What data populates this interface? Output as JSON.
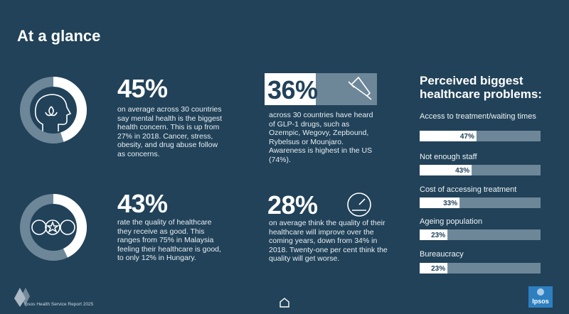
{
  "header": {
    "title": "At a glance"
  },
  "stats": [
    {
      "label": "45%",
      "value": 45,
      "text": "on average across 30 countries say mental health is the biggest health concern. This is up from 27% in 2018. Cancer, stress, obesity, and drug abuse follow as concerns."
    },
    {
      "label": "36%",
      "text": "across 30 countries have heard of GLP-1 drugs, such as Ozempic, Wegovy, Zepbound, Rybelsus or Mounjaro. Awareness is highest in the US (74%)."
    },
    {
      "label": "43%",
      "value": 43,
      "text": "rate the quality of healthcare they receive as good. This ranges from 75% in Malaysia feeling their healthcare is good, to only 12% in Hungary."
    },
    {
      "label": "28%",
      "text": "on average think the quality of their healthcare will improve over the coming years, down from 34% in 2018. Twenty-one per cent think the quality will get worse."
    }
  ],
  "problems": {
    "title": "Perceived biggest healthcare problems:",
    "categories": [
      "Access to treatment/waiting times",
      "Not enough staff",
      "Cost of accessing treatment",
      "Ageing population",
      "Bureaucracy"
    ],
    "values": [
      47,
      43,
      33,
      23,
      23
    ],
    "value_labels": [
      "47%",
      "43%",
      "33%",
      "23%",
      "23%"
    ],
    "xlim": [
      0,
      100
    ]
  },
  "footer": {
    "source": "Ipsos Health Service Report 2025",
    "logo": "Ipsos"
  }
}
